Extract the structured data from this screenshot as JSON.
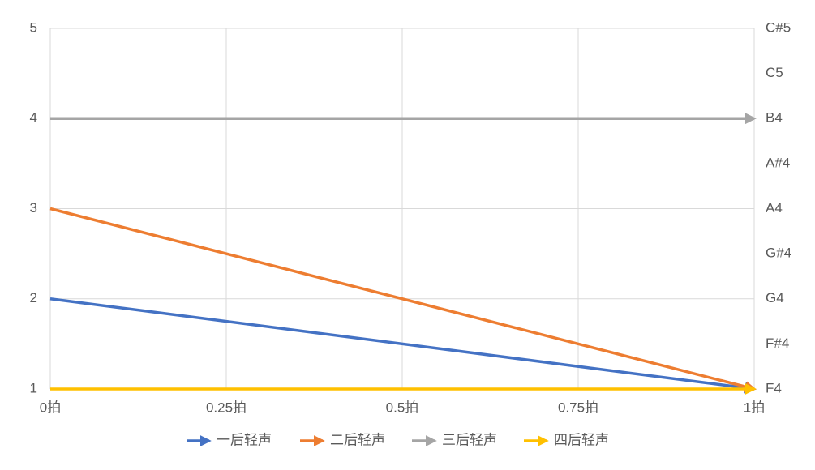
{
  "chart_data": {
    "type": "line",
    "x": [
      0,
      1
    ],
    "xlim": [
      0,
      1
    ],
    "xticks": [
      {
        "value": 0,
        "label": "0拍"
      },
      {
        "value": 0.25,
        "label": "0.25拍"
      },
      {
        "value": 0.5,
        "label": "0.5拍"
      },
      {
        "value": 0.75,
        "label": "0.75拍"
      },
      {
        "value": 1,
        "label": "1拍"
      }
    ],
    "ylim": [
      1,
      5
    ],
    "yticks": [
      1,
      2,
      3,
      4,
      5
    ],
    "y2lim": [
      1,
      5
    ],
    "y2ticks": [
      {
        "value": 1,
        "label": "F4"
      },
      {
        "value": 1.5,
        "label": "F#4"
      },
      {
        "value": 2,
        "label": "G4"
      },
      {
        "value": 2.5,
        "label": "G#4"
      },
      {
        "value": 3,
        "label": "A4"
      },
      {
        "value": 3.5,
        "label": "A#4"
      },
      {
        "value": 4,
        "label": "B4"
      },
      {
        "value": 4.5,
        "label": "C5"
      },
      {
        "value": 5,
        "label": "C#5"
      }
    ],
    "grid": true,
    "legend": "bottom",
    "series": [
      {
        "name": "一后轻声",
        "color": "#4472c4",
        "values": [
          2,
          1
        ]
      },
      {
        "name": "二后轻声",
        "color": "#ed7d31",
        "values": [
          3,
          1
        ]
      },
      {
        "name": "三后轻声",
        "color": "#a5a5a5",
        "values": [
          4,
          4
        ]
      },
      {
        "name": "四后轻声",
        "color": "#ffc000",
        "values": [
          1,
          1
        ]
      }
    ]
  }
}
